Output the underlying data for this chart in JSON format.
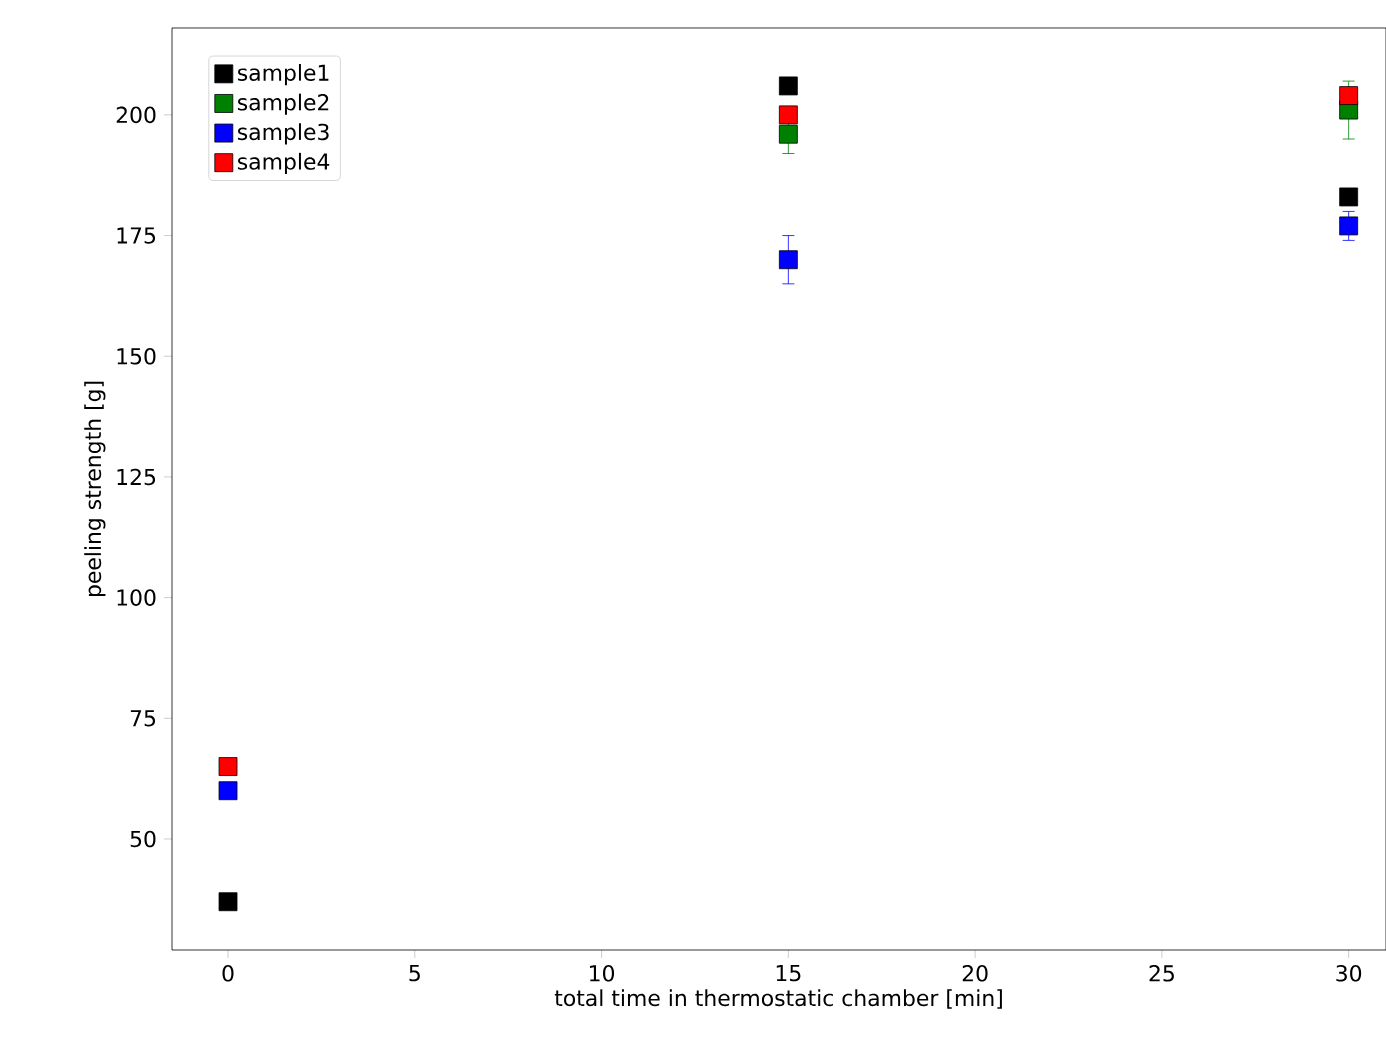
{
  "chart_data": {
    "type": "scatter",
    "xlabel": "total time in thermostatic chamber [min]",
    "ylabel": "peeling strength [g]",
    "x": [
      0,
      15,
      30
    ],
    "series": [
      {
        "name": "sample1",
        "color": "#000000",
        "values": [
          37,
          206,
          183
        ]
      },
      {
        "name": "sample2",
        "color": "#008000",
        "values": [
          null,
          196,
          201
        ],
        "errors": [
          null,
          4,
          6
        ]
      },
      {
        "name": "sample3",
        "color": "#0000ff",
        "values": [
          60,
          170,
          177
        ],
        "errors": [
          null,
          5,
          3
        ]
      },
      {
        "name": "sample4",
        "color": "#ff0000",
        "values": [
          65,
          200,
          204
        ]
      }
    ],
    "xlim": [
      -1.5,
      31
    ],
    "ylim": [
      27,
      218
    ],
    "xticks": [
      0,
      5,
      10,
      15,
      20,
      25,
      30
    ],
    "yticks": [
      50,
      75,
      100,
      125,
      150,
      175,
      200
    ],
    "legend": "top left",
    "marker": "square",
    "grid": false
  }
}
